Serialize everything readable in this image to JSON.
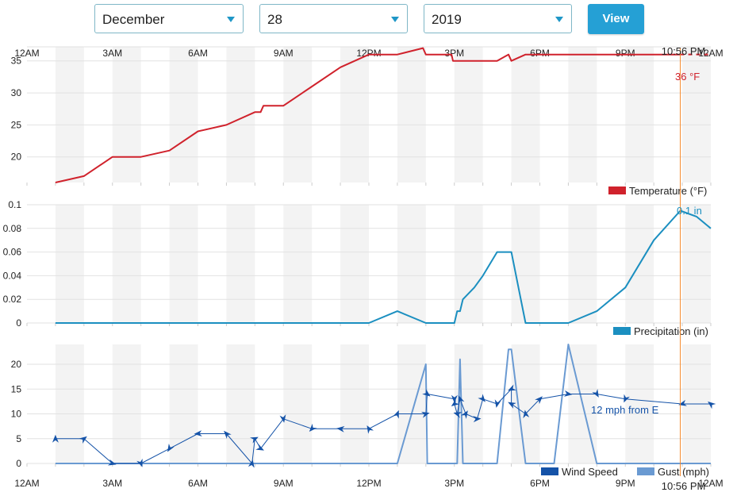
{
  "controls": {
    "month": "December",
    "day": "28",
    "year": "2019",
    "view_label": "View"
  },
  "time_labels": [
    "12AM",
    "3AM",
    "6AM",
    "9AM",
    "12PM",
    "3PM",
    "6PM",
    "9PM",
    "12AM"
  ],
  "cursor": {
    "time_label": "10:56 PM",
    "hour": 22.93
  },
  "colors": {
    "temperature": "#d0222c",
    "precipitation": "#1b8fc0",
    "wind": "#1553a8",
    "gust": "#6a9ad2",
    "cursor": "#f5882a",
    "band": "#f3f3f3"
  },
  "chart_data": [
    {
      "type": "line",
      "x_unit": "hour of day",
      "xlim": [
        0,
        24
      ],
      "ylim": [
        16,
        37.2
      ],
      "y_ticks": [
        20,
        25,
        30,
        35
      ],
      "grid": true,
      "legend_position": "bottom-right",
      "series": [
        {
          "name": "Temperature (°F)",
          "points": [
            [
              1,
              16
            ],
            [
              2,
              17
            ],
            [
              3,
              20
            ],
            [
              4,
              20
            ],
            [
              5,
              21
            ],
            [
              6,
              24
            ],
            [
              7,
              25
            ],
            [
              8,
              27
            ],
            [
              8.2,
              27
            ],
            [
              8.3,
              28
            ],
            [
              9,
              28
            ],
            [
              10,
              31
            ],
            [
              11,
              34
            ],
            [
              12,
              36
            ],
            [
              13,
              36
            ],
            [
              13.9,
              37
            ],
            [
              14,
              36
            ],
            [
              14.9,
              36
            ],
            [
              14.95,
              35
            ],
            [
              15,
              35
            ],
            [
              16.5,
              35
            ],
            [
              16.9,
              36
            ],
            [
              17,
              35
            ],
            [
              17.5,
              36
            ],
            [
              22.93,
              36
            ]
          ]
        }
      ],
      "cursor_label": "36 °F"
    },
    {
      "type": "line",
      "x_unit": "hour of day",
      "xlim": [
        0,
        24
      ],
      "ylim": [
        0,
        0.1
      ],
      "y_ticks": [
        "0",
        "0.02",
        "0.04",
        "0.06",
        "0.08",
        "0.1"
      ],
      "grid": true,
      "legend_position": "bottom-right",
      "series": [
        {
          "name": "Precipitation (in)",
          "points": [
            [
              1,
              0
            ],
            [
              12,
              0
            ],
            [
              13,
              0.01
            ],
            [
              14,
              0
            ],
            [
              15,
              0
            ],
            [
              15.1,
              0.01
            ],
            [
              15.2,
              0.01
            ],
            [
              15.3,
              0.02
            ],
            [
              15.7,
              0.03
            ],
            [
              16,
              0.04
            ],
            [
              16.5,
              0.06
            ],
            [
              17,
              0.06
            ],
            [
              17.5,
              0
            ],
            [
              19,
              0
            ],
            [
              20,
              0.01
            ],
            [
              21,
              0.03
            ],
            [
              22,
              0.07
            ],
            [
              22.93,
              0.095
            ],
            [
              23.5,
              0.09
            ],
            [
              24,
              0.08
            ]
          ]
        }
      ],
      "cursor_label": "0.1 in"
    },
    {
      "type": "line",
      "x_unit": "hour of day",
      "xlim": [
        0,
        24
      ],
      "ylim": [
        0,
        24
      ],
      "y_ticks": [
        0,
        5,
        10,
        15,
        20
      ],
      "grid": true,
      "legend_position": "bottom-right",
      "series": [
        {
          "name": "Wind Speed",
          "points": [
            [
              1,
              5
            ],
            [
              2,
              5
            ],
            [
              3,
              0
            ],
            [
              4,
              0
            ],
            [
              5,
              3
            ],
            [
              6,
              6
            ],
            [
              7,
              6
            ],
            [
              7.9,
              0
            ],
            [
              8,
              5
            ],
            [
              8.2,
              3
            ],
            [
              9,
              9
            ],
            [
              10,
              7
            ],
            [
              11,
              7
            ],
            [
              12,
              7
            ],
            [
              13,
              10
            ],
            [
              14,
              10
            ],
            [
              14.05,
              14
            ],
            [
              15,
              13
            ],
            [
              15,
              12
            ],
            [
              15.1,
              10
            ],
            [
              15.2,
              13
            ],
            [
              15.4,
              10
            ],
            [
              15.8,
              9
            ],
            [
              16,
              13
            ],
            [
              16.5,
              12
            ],
            [
              17,
              15
            ],
            [
              17,
              12
            ],
            [
              17.5,
              10
            ],
            [
              18,
              13
            ],
            [
              19,
              14
            ],
            [
              20,
              14
            ],
            [
              21,
              13
            ],
            [
              23,
              12
            ],
            [
              24,
              12
            ]
          ]
        },
        {
          "name": "Gust (mph)",
          "points": [
            [
              1,
              0
            ],
            [
              13,
              0
            ],
            [
              14,
              20
            ],
            [
              14.05,
              0
            ],
            [
              15.1,
              0
            ],
            [
              15.2,
              21
            ],
            [
              15.3,
              0
            ],
            [
              16.5,
              0
            ],
            [
              16.9,
              23
            ],
            [
              17,
              23
            ],
            [
              17.5,
              0
            ],
            [
              18.5,
              0
            ],
            [
              19,
              24
            ],
            [
              20,
              0
            ],
            [
              24,
              0
            ]
          ]
        }
      ],
      "cursor_label": "12 mph from E"
    }
  ]
}
